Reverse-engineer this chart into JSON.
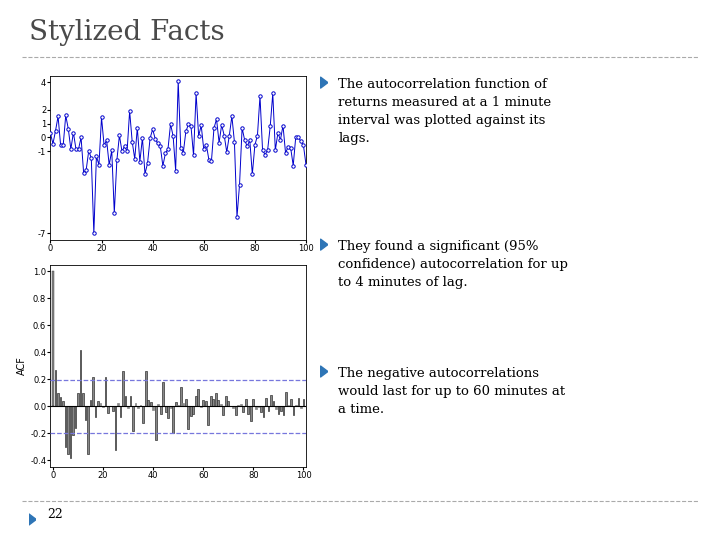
{
  "title": "Stylized Facts",
  "title_color": "#4a4a4a",
  "background_color": "#ffffff",
  "slide_number": "22",
  "bullet_color": "#2e75b6",
  "top_plot": {
    "xlim": [
      0,
      100
    ],
    "ylim": [
      -7.5,
      4.5
    ],
    "yticks": [
      -7,
      -1,
      0,
      1,
      2,
      4
    ],
    "ytick_labels": [
      "-7",
      "-1",
      "0",
      "1",
      "2",
      "4"
    ],
    "xticks": [
      0,
      20,
      40,
      60,
      80,
      100
    ],
    "line_color": "#0000cc",
    "seed": 42
  },
  "bottom_plot": {
    "xlim": [
      -1,
      101
    ],
    "ylim": [
      -0.45,
      1.05
    ],
    "yticks": [
      -0.4,
      -0.2,
      0.0,
      0.2,
      0.4,
      0.6,
      0.8,
      1.0
    ],
    "ytick_labels": [
      "-0.4",
      "-0.2",
      "0.0",
      "0.2",
      "0.4",
      "0.6",
      "0.8",
      "1.0"
    ],
    "xticks": [
      0,
      20,
      40,
      60,
      80,
      100
    ],
    "bar_color": "#888888",
    "bar_edge_color": "#333333",
    "conf_line_color": "#7777dd",
    "conf_value": 0.196,
    "ylabel": "ACF",
    "seed": 123
  },
  "separator_color": "#aaaaaa",
  "font_family": "DejaVu Serif",
  "bullet_texts_1": "Ø  The autocorrelation function of\nreturns measured at a 1 minute\ninterval was plotted against its\nlags.",
  "bullet_texts_2": "Ø  They found a significant (95%\nconfidence) autocorrelation for up\nto 4 minutes of lag.",
  "bullet_texts_3": "Ø  The negative autocorrelations\nwould last for up to 60 minutes at\na time."
}
